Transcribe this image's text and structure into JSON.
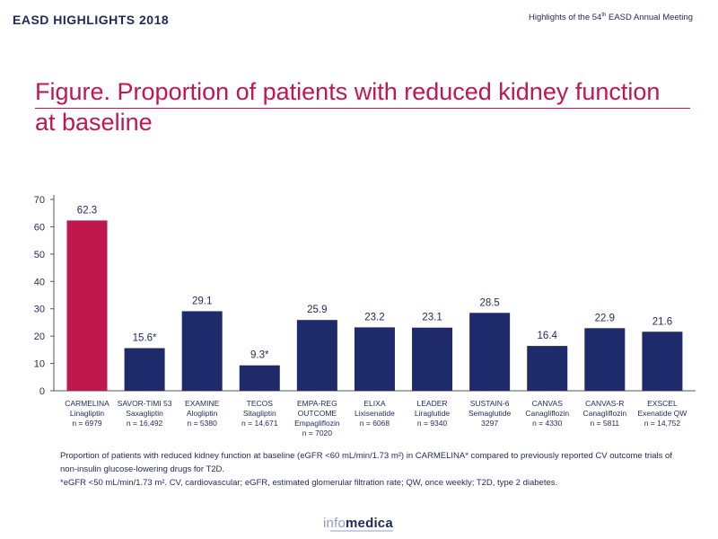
{
  "header": {
    "left": "EASD HIGHLIGHTS 2018",
    "right_pre": "Highlights of the 54",
    "right_sup": "th",
    "right_post": " EASD Annual Meeting"
  },
  "title": "Figure. Proportion of patients with reduced kidney function at baseline",
  "colors": {
    "highlight": "#c0174f",
    "bar": "#1f2a6b",
    "text": "#1f2a5a"
  },
  "chart_data": {
    "type": "bar",
    "ylim": [
      0,
      70
    ],
    "yticks": [
      0,
      10,
      20,
      30,
      40,
      50,
      60,
      70
    ],
    "grid": false,
    "categories": [
      {
        "trial": "CARMELINA",
        "drug": "Linagliptin",
        "n": "n = 6979",
        "value": 62.3,
        "label": "62.3",
        "highlight": true
      },
      {
        "trial": "SAVOR-TIMI 53",
        "drug": "Saxagliptin",
        "n": "n = 16,492",
        "value": 15.6,
        "label": "15.6*",
        "highlight": false
      },
      {
        "trial": "EXAMINE",
        "drug": "Alogliptin",
        "n": "n = 5380",
        "value": 29.1,
        "label": "29.1",
        "highlight": false
      },
      {
        "trial": "TECOS",
        "drug": "Sitagliptin",
        "n": "n = 14,671",
        "value": 9.3,
        "label": "9.3*",
        "highlight": false
      },
      {
        "trial": "EMPA-REG",
        "trial2": "OUTCOME",
        "drug": "Empagliflozin",
        "n": "n = 7020",
        "value": 25.9,
        "label": "25.9",
        "highlight": false
      },
      {
        "trial": "ELIXA",
        "drug": "Lixisenatide",
        "n": "n = 6068",
        "value": 23.2,
        "label": "23.2",
        "highlight": false
      },
      {
        "trial": "LEADER",
        "drug": "Liraglutide",
        "n": "n = 9340",
        "value": 23.1,
        "label": "23.1",
        "highlight": false
      },
      {
        "trial": "SUSTAIN-6",
        "drug": "Semaglutide",
        "n": "3297",
        "value": 28.5,
        "label": "28.5",
        "highlight": false
      },
      {
        "trial": "CANVAS",
        "drug": "Canagliflozin",
        "n": "n = 4330",
        "value": 16.4,
        "label": "16.4",
        "highlight": false
      },
      {
        "trial": "CANVAS-R",
        "drug": "Canagliflozin",
        "n": "n = 5811",
        "value": 22.9,
        "label": "22.9",
        "highlight": false
      },
      {
        "trial": "EXSCEL",
        "drug": "Exenatide QW",
        "n": "n = 14,752",
        "value": 21.6,
        "label": "21.6",
        "highlight": false
      }
    ]
  },
  "notes": [
    "Proportion of patients with reduced kidney function at baseline (eGFR <60 mL/min/1.73 m²) in CARMELINA* compared to previously reported CV outcome trials of non-insulin glucose-lowering drugs for T2D.",
    "*eGFR <50 mL/min/1.73 m². CV, cardiovascular; eGFR, estimated glomerular filtration rate; QW, once weekly; T2D, type 2 diabetes."
  ],
  "logo": {
    "part1": "info",
    "part2": "medica"
  }
}
